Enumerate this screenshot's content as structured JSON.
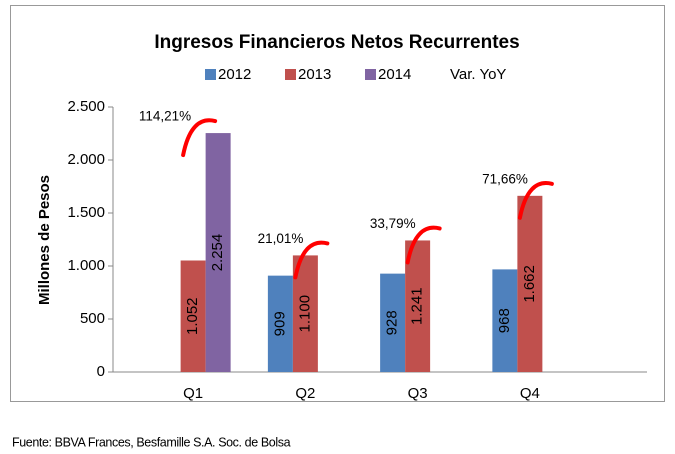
{
  "chart_data": {
    "type": "bar",
    "title": "Ingresos Financieros Netos Recurrentes",
    "y_label": "Millones de Pesos",
    "source": "Fuente: BBVA Frances, Besfamille S.A. Soc. de Bolsa",
    "categories": [
      "Q1",
      "Q2",
      "Q3",
      "Q4"
    ],
    "series": [
      {
        "name": "2012",
        "color": "#4f81bd",
        "values": [
          null,
          909,
          928,
          968
        ],
        "value_labels": [
          null,
          "909",
          "928",
          "968"
        ]
      },
      {
        "name": "2013",
        "color": "#c0504d",
        "values": [
          1052,
          1100,
          1241,
          1662
        ],
        "value_labels": [
          "1.052",
          "1.100",
          "1.241",
          "1.662"
        ]
      },
      {
        "name": "2014",
        "color": "#8064a2",
        "values": [
          2254,
          null,
          null,
          null
        ],
        "value_labels": [
          "2.254",
          null,
          null,
          null
        ]
      }
    ],
    "yoy": {
      "name": "Var. YoY",
      "color": "#ff0000",
      "values": [
        114.21,
        21.01,
        33.79,
        71.66
      ],
      "value_labels": [
        "114,21%",
        "21,01%",
        "33,79%",
        "71,66%"
      ]
    },
    "ylim": [
      0,
      2500
    ],
    "yticks": [
      0,
      500,
      {
        "value": 1000,
        "label": "1.000"
      },
      {
        "value": 1500,
        "label": "1.500"
      },
      {
        "value": 2000,
        "label": "2.000"
      },
      {
        "value": 2500,
        "label": "2.500"
      }
    ],
    "grid": false
  }
}
